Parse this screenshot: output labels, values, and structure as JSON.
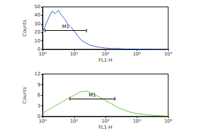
{
  "chart_data": [
    {
      "type": "line",
      "log": "x",
      "xlabel": "FL1-H",
      "ylabel": "Counts",
      "color": "#3a5fcd",
      "x": [
        1,
        1.3,
        1.6,
        2,
        2.5,
        3.2,
        4,
        5,
        6.3,
        8,
        10,
        13,
        16,
        20,
        25,
        32,
        40,
        50,
        63,
        80,
        100,
        160,
        250,
        400,
        630,
        1000,
        2500,
        10000
      ],
      "values": [
        20,
        30,
        38,
        45,
        42,
        46,
        40,
        36,
        30,
        26,
        22,
        16,
        12,
        9,
        7,
        5,
        4,
        3,
        2.5,
        2,
        1.5,
        1,
        1,
        0.5,
        0.5,
        0.3,
        0.2,
        0
      ],
      "xlim": [
        1,
        10000
      ],
      "xticks": [
        {
          "value": 1,
          "label": "10⁰"
        },
        {
          "value": 10,
          "label": "10¹"
        },
        {
          "value": 100,
          "label": "10²"
        },
        {
          "value": 1000,
          "label": "10³"
        },
        {
          "value": 10000,
          "label": "10⁴"
        }
      ],
      "ylim": [
        0,
        50
      ],
      "yticks": [
        0,
        10,
        20,
        30,
        40,
        50
      ],
      "annotations": [
        {
          "text": "M1",
          "x0": 1.2,
          "x1": 25,
          "y": 22
        }
      ]
    },
    {
      "type": "line",
      "log": "x",
      "xlabel": "FL1-H",
      "ylabel": "Counts",
      "color": "#6cc23a",
      "x": [
        1,
        1.3,
        1.6,
        2,
        2.5,
        3.2,
        4,
        5,
        6.3,
        8,
        10,
        13,
        16,
        20,
        25,
        32,
        40,
        50,
        63,
        80,
        100,
        160,
        250,
        400,
        630,
        1000,
        2500,
        10000
      ],
      "values": [
        1,
        1.5,
        2,
        2.5,
        3,
        3.5,
        4,
        4.5,
        5,
        5.5,
        6,
        6.5,
        7,
        7,
        7.2,
        6.8,
        6.5,
        6,
        5.5,
        5,
        4.5,
        3.5,
        2.5,
        1.8,
        1.2,
        0.8,
        0.4,
        0.1
      ],
      "xlim": [
        1,
        10000
      ],
      "xticks": [
        {
          "value": 1,
          "label": "10⁰"
        },
        {
          "value": 10,
          "label": "10¹"
        },
        {
          "value": 100,
          "label": "10²"
        },
        {
          "value": 1000,
          "label": "10³"
        },
        {
          "value": 10000,
          "label": "10⁴"
        }
      ],
      "ylim": [
        0,
        12
      ],
      "yticks": [
        0,
        3,
        6,
        9,
        12
      ],
      "annotations": [
        {
          "text": "M1",
          "x0": 7.4,
          "x1": 200,
          "y": 5
        }
      ]
    }
  ]
}
